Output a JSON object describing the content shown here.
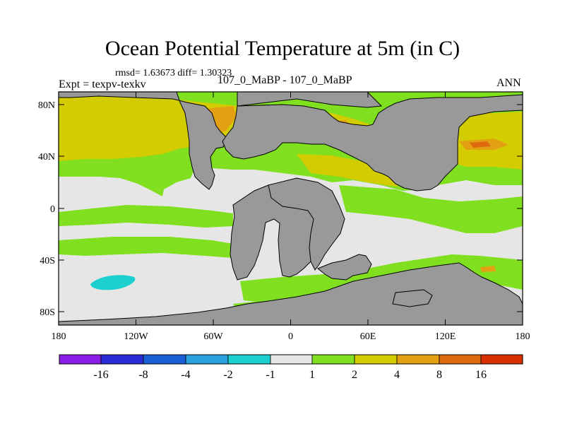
{
  "title": "Ocean Potential Temperature at 5m (in C)",
  "stats": "rmsd= 1.63673 diff= 1.30323",
  "experiment": "Expt = texpv-texkv",
  "center_label": "107_0_MaBP - 107_0_MaBP",
  "season": "ANN",
  "lat_ticks": [
    "80N",
    "40N",
    "0",
    "40S",
    "80S"
  ],
  "lon_ticks": [
    "180",
    "120W",
    "60W",
    "0",
    "60E",
    "120E",
    "180"
  ],
  "legend": {
    "labels": [
      "-16",
      "-8",
      "-4",
      "-2",
      "-1",
      "1",
      "2",
      "4",
      "8",
      "16"
    ],
    "colors": [
      "#8a1ee6",
      "#2b2bd6",
      "#1a5fd6",
      "#2aa0dc",
      "#1cd0d0",
      "#e6e6e6",
      "#80e020",
      "#d2cc00",
      "#e3a012",
      "#e06a10",
      "#d83000"
    ]
  },
  "colors": {
    "land": "#999999",
    "neutral": "#e6e6e6",
    "warm1": "#80e020",
    "warm2": "#d2cc00",
    "warm3": "#e3a012",
    "warm4": "#e06a10",
    "cold": "#1cd0d0"
  }
}
